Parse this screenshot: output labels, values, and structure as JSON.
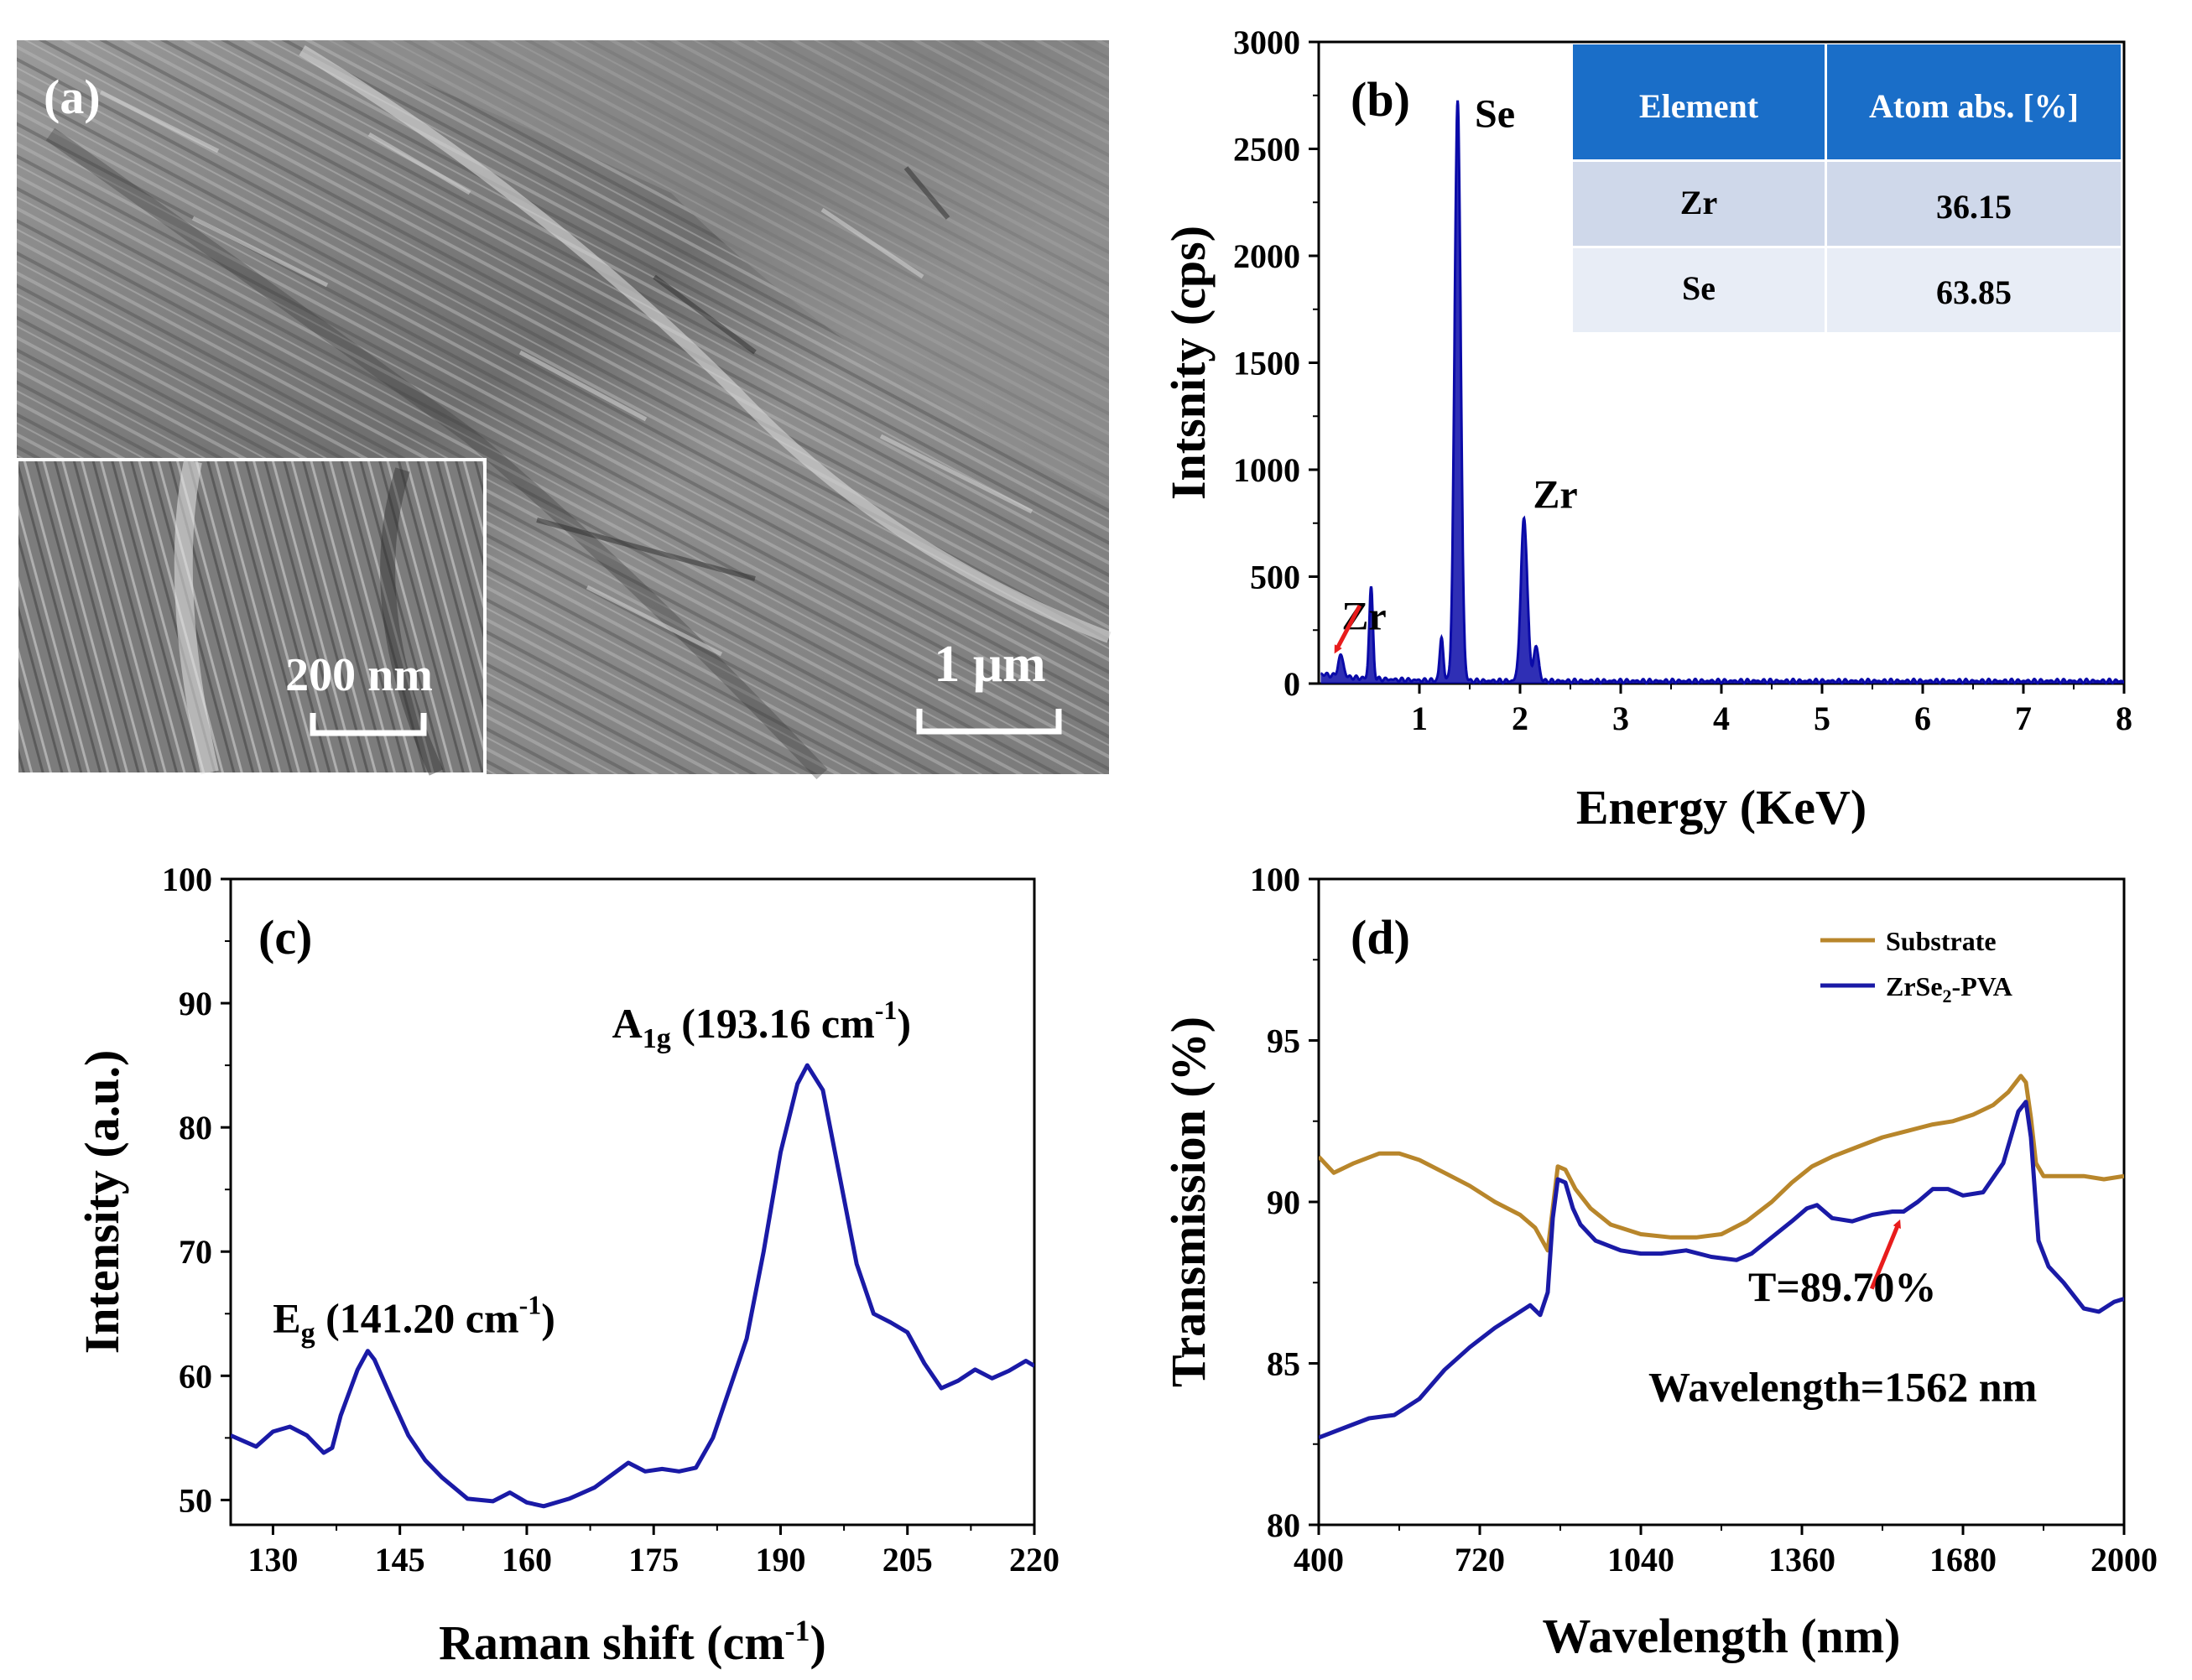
{
  "panel_a": {
    "label": "(a)",
    "image_description": "SEM micrograph of layered ZrSe2 flakes",
    "main_scale_bar": "1 μm",
    "inset_scale_bar": "200 nm"
  },
  "colors": {
    "eds": "#0a0aa8",
    "raman": "#1a1aa6",
    "substrate": "#b8862b",
    "zrse2": "#1a1aa6",
    "table_header": "#1a6ec8",
    "table_row1": "#cfd8ea",
    "table_row2": "#e8edf6",
    "arrow": "#e81c1c"
  },
  "chart_data": [
    {
      "panel": "(b)",
      "type": "line",
      "title": "",
      "xlabel": "Energy (KeV)",
      "ylabel": "Intsnity (cps)",
      "xlim": [
        0,
        8
      ],
      "ylim": [
        0,
        3000
      ],
      "xticks": [
        1,
        2,
        3,
        4,
        5,
        6,
        7,
        8
      ],
      "yticks": [
        0,
        500,
        1000,
        1500,
        2000,
        2500,
        3000
      ],
      "peaks": [
        {
          "x": 0.22,
          "y": 100,
          "width": 0.025
        },
        {
          "x": 0.52,
          "y": 430,
          "width": 0.018
        },
        {
          "x": 1.22,
          "y": 200,
          "width": 0.018
        },
        {
          "x": 1.38,
          "y": 2720,
          "width": 0.03
        },
        {
          "x": 2.04,
          "y": 760,
          "width": 0.032
        },
        {
          "x": 2.16,
          "y": 160,
          "width": 0.025
        }
      ],
      "annotations": [
        {
          "text": "Se",
          "x": 1.75,
          "y": 2720
        },
        {
          "text": "Zr",
          "x": 2.35,
          "y": 860
        },
        {
          "text": "Zr",
          "x": 0.45,
          "y": 450
        }
      ],
      "table": {
        "headers": [
          "Element",
          "Atom abs. [%]"
        ],
        "rows": [
          [
            "Zr",
            "36.15"
          ],
          [
            "Se",
            "63.85"
          ]
        ]
      }
    },
    {
      "panel": "(c)",
      "type": "line",
      "xlabel": "Raman shift (cm",
      "xlabel_sup": "-1",
      "xlabel_end": ")",
      "ylabel": "Intensity (a.u.)",
      "xlim": [
        125,
        220
      ],
      "ylim": [
        48,
        100
      ],
      "xticks": [
        130,
        145,
        160,
        175,
        190,
        205,
        220
      ],
      "yticks": [
        50,
        60,
        70,
        80,
        90,
        100
      ],
      "x": [
        125,
        128,
        130,
        132,
        134,
        136,
        137,
        138,
        140,
        141.2,
        142,
        144,
        146,
        148,
        150,
        153,
        156,
        158,
        160,
        162,
        165,
        168,
        170,
        172,
        174,
        176,
        178,
        180,
        182,
        184,
        186,
        188,
        190,
        192,
        193.16,
        195,
        197,
        199,
        201,
        203,
        205,
        207,
        209,
        211,
        213,
        215,
        217,
        219,
        220
      ],
      "y": [
        55.2,
        54.3,
        55.5,
        55.9,
        55.2,
        53.8,
        54.2,
        56.8,
        60.5,
        62,
        61.3,
        58.2,
        55.2,
        53.2,
        51.8,
        50.1,
        49.9,
        50.6,
        49.8,
        49.5,
        50.1,
        51.0,
        52.0,
        53.0,
        52.3,
        52.5,
        52.3,
        52.6,
        55.0,
        59.0,
        63.0,
        70.0,
        78.0,
        83.5,
        85.0,
        83.0,
        76.0,
        69.0,
        65.0,
        64.3,
        63.5,
        61.0,
        59.0,
        59.6,
        60.5,
        59.8,
        60.4,
        61.2,
        60.8
      ],
      "annotations": [
        {
          "main": "E",
          "sub": "g",
          "rest": " (141.20 cm",
          "sup": "-1",
          "end": ")",
          "x": 128,
          "y": 63.5
        },
        {
          "main": "A",
          "sub": "1g",
          "rest": " (193.16 cm",
          "sup": "-1",
          "end": ")",
          "x": 180,
          "y": 87.5
        }
      ],
      "label": "(c)"
    },
    {
      "panel": "(d)",
      "type": "line",
      "xlabel": "Wavelength (nm)",
      "ylabel": "Transmission (%)",
      "xlim": [
        400,
        2000
      ],
      "ylim": [
        80,
        100
      ],
      "xticks": [
        400,
        720,
        1040,
        1360,
        1680,
        2000
      ],
      "yticks": [
        80,
        85,
        90,
        95,
        100
      ],
      "series": [
        {
          "name": "Substrate",
          "x": [
            400,
            430,
            470,
            520,
            560,
            600,
            650,
            700,
            750,
            800,
            830,
            855,
            865,
            875,
            890,
            910,
            940,
            980,
            1040,
            1100,
            1150,
            1200,
            1250,
            1300,
            1340,
            1380,
            1420,
            1470,
            1520,
            1570,
            1620,
            1660,
            1700,
            1740,
            1770,
            1795,
            1805,
            1815,
            1825,
            1840,
            1870,
            1920,
            1960,
            2000
          ],
          "y": [
            91.4,
            90.9,
            91.2,
            91.5,
            91.5,
            91.3,
            90.9,
            90.5,
            90.0,
            89.6,
            89.2,
            88.5,
            89.8,
            91.1,
            91.0,
            90.4,
            89.8,
            89.3,
            89.0,
            88.9,
            88.9,
            89.0,
            89.4,
            90.0,
            90.6,
            91.1,
            91.4,
            91.7,
            92.0,
            92.2,
            92.4,
            92.5,
            92.7,
            93.0,
            93.4,
            93.9,
            93.7,
            92.6,
            91.2,
            90.8,
            90.8,
            90.8,
            90.7,
            90.8
          ]
        },
        {
          "name": "ZrSe₂-PVA",
          "name_main": "ZrSe",
          "name_sub": "2",
          "name_end": "-PVA",
          "x": [
            400,
            450,
            500,
            550,
            600,
            650,
            700,
            750,
            790,
            820,
            840,
            855,
            865,
            875,
            890,
            905,
            920,
            950,
            1000,
            1040,
            1080,
            1130,
            1180,
            1230,
            1260,
            1300,
            1340,
            1370,
            1390,
            1420,
            1460,
            1500,
            1540,
            1562,
            1590,
            1620,
            1650,
            1680,
            1720,
            1760,
            1790,
            1805,
            1815,
            1830,
            1850,
            1880,
            1920,
            1950,
            1980,
            2000
          ],
          "y": [
            82.7,
            83.0,
            83.3,
            83.4,
            83.9,
            84.8,
            85.5,
            86.1,
            86.5,
            86.8,
            86.5,
            87.2,
            89.5,
            90.7,
            90.6,
            89.8,
            89.3,
            88.8,
            88.5,
            88.4,
            88.4,
            88.5,
            88.3,
            88.2,
            88.4,
            88.9,
            89.4,
            89.8,
            89.9,
            89.5,
            89.4,
            89.6,
            89.7,
            89.7,
            90.0,
            90.4,
            90.4,
            90.2,
            90.3,
            91.2,
            92.8,
            93.1,
            92.0,
            88.8,
            88.0,
            87.5,
            86.7,
            86.6,
            86.9,
            87.0
          ]
        }
      ],
      "annotations": [
        {
          "text": "T=89.70%",
          "x": 1240,
          "y": 87.2
        },
        {
          "text": "Wavelength=1562 nm",
          "x": 1240,
          "y": 84.2
        }
      ],
      "arrow_target": {
        "x": 1562,
        "y": 89.7
      },
      "label": "(d)"
    }
  ]
}
